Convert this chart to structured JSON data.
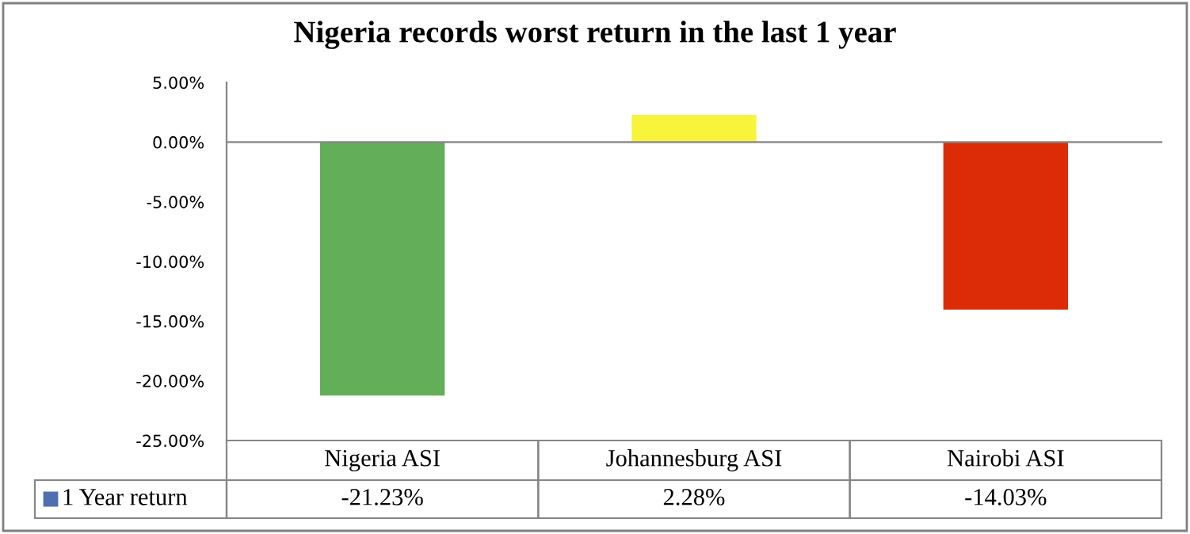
{
  "chart_data": {
    "type": "bar",
    "title": "Nigeria records worst return in the last 1 year",
    "categories": [
      "Nigeria ASI",
      "Johannesburg ASI",
      "Nairobi ASI"
    ],
    "series": [
      {
        "name": "1 Year return",
        "color": "#4f6fb0",
        "colors": [
          "#62ae59",
          "#f8f43c",
          "#dc2c07"
        ],
        "values": [
          -21.23,
          2.28,
          -14.03
        ],
        "value_labels": [
          "-21.23%",
          "2.28%",
          "-14.03%"
        ]
      }
    ],
    "ylim": [
      -25,
      5
    ],
    "yticks": [
      {
        "value": 5,
        "label": "5.00%"
      },
      {
        "value": 0,
        "label": "0.00%"
      },
      {
        "value": -5,
        "label": "-5.00%"
      },
      {
        "value": -10,
        "label": "-10.00%"
      },
      {
        "value": -15,
        "label": "-15.00%"
      },
      {
        "value": -20,
        "label": "-20.00%"
      },
      {
        "value": -25,
        "label": "-25.00%"
      }
    ],
    "legend": "bottom"
  }
}
